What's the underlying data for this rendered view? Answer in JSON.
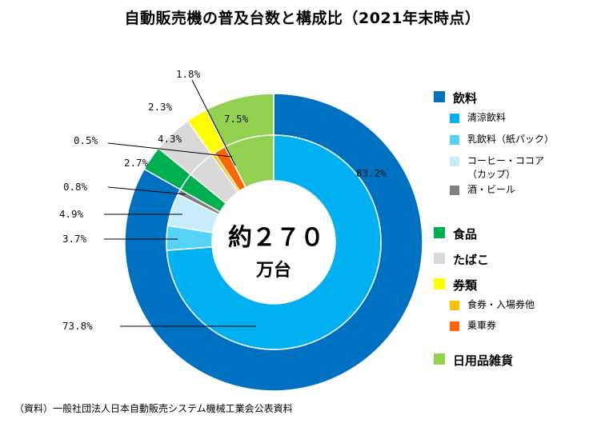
{
  "chart_data": {
    "type": "pie",
    "title": "自動販売機の普及台数と構成比（2021年末時点）",
    "center_label": "約２７０",
    "center_unit": "万台",
    "outer_ring": [
      {
        "name": "飲料",
        "value": 83.2,
        "label": "83.2%",
        "color": "#0070c0"
      },
      {
        "name": "食品",
        "value": 2.7,
        "label": "2.7%",
        "color": "#00b050"
      },
      {
        "name": "たばこ",
        "value": 4.3,
        "label": "4.3%",
        "color": "#d9d9d9"
      },
      {
        "name": "券類",
        "value": 2.3,
        "label": "2.3%",
        "color": "#ffff00"
      },
      {
        "name": "日用品雑貨",
        "value": 7.5,
        "label": "7.5%",
        "color": "#92d050"
      }
    ],
    "inner_ring": [
      {
        "name": "清涼飲料",
        "value": 73.8,
        "label": "73.8%",
        "color": "#00b0f0"
      },
      {
        "name": "乳飲料（紙パック）",
        "value": 3.7,
        "label": "3.7%",
        "color": "#57d3f7"
      },
      {
        "name": "コーヒー・ココア（カップ）",
        "value": 4.9,
        "label": "4.9%",
        "color": "#c9ecfb"
      },
      {
        "name": "酒・ビール",
        "value": 0.8,
        "label": "0.8%",
        "color": "#808080"
      },
      {
        "name": "食品",
        "value": 2.7,
        "label": "",
        "color": "#00b050"
      },
      {
        "name": "たばこ",
        "value": 4.3,
        "label": "",
        "color": "#d9d9d9"
      },
      {
        "name": "食券・入場券他",
        "value": 0.5,
        "label": "0.5%",
        "color": "#ffc000"
      },
      {
        "name": "乗車券",
        "value": 1.8,
        "label": "1.8%",
        "color": "#ff6600"
      },
      {
        "name": "日用品雑貨",
        "value": 7.5,
        "label": "",
        "color": "#92d050"
      }
    ],
    "legend": [
      {
        "label": "飲料",
        "color": "#0070c0",
        "level": 0
      },
      {
        "label": "清涼飲料",
        "color": "#00b0f0",
        "level": 1
      },
      {
        "label": "乳飲料（紙パック）",
        "color": "#57d3f7",
        "level": 1
      },
      {
        "label": "コーヒー・ココア\n（カップ）",
        "color": "#c9ecfb",
        "level": 1
      },
      {
        "label": "酒・ビール",
        "color": "#808080",
        "level": 1
      },
      {
        "label": "食品",
        "color": "#00b050",
        "level": 0
      },
      {
        "label": "たばこ",
        "color": "#d9d9d9",
        "level": 0
      },
      {
        "label": "券類",
        "color": "#ffff00",
        "level": 0
      },
      {
        "label": "食券・入場券他",
        "color": "#ffc000",
        "level": 1
      },
      {
        "label": "乗車券",
        "color": "#ff6600",
        "level": 1
      },
      {
        "label": "日用品雑貨",
        "color": "#92d050",
        "level": 0
      }
    ]
  },
  "source": "（資料）一般社団法人日本自動販売システム機械工業会公表資料"
}
